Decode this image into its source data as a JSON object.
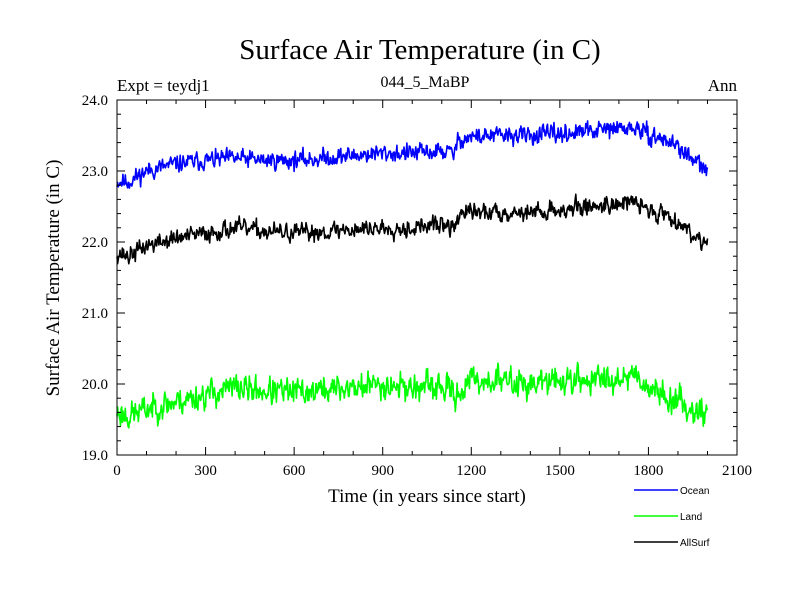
{
  "chart_data": {
    "type": "line",
    "title": "Surface Air Temperature (in C)",
    "subtitle_left": "Expt = teydj1",
    "subtitle_center": "044_5_MaBP",
    "subtitle_right": "Ann",
    "xlabel": "Time (in years since start)",
    "ylabel": "Surface Air Temperature (in C)",
    "xlim": [
      0,
      2100
    ],
    "ylim": [
      19.0,
      24.0
    ],
    "x_ticks": [
      0,
      300,
      600,
      900,
      1200,
      1500,
      1800,
      2100
    ],
    "x_tick_labels": [
      "0",
      "300",
      "600",
      "900",
      "1200",
      "1500",
      "1800",
      "2100"
    ],
    "y_ticks": [
      19,
      20,
      21,
      22,
      23,
      24
    ],
    "y_tick_labels": [
      "19.0",
      "20.0",
      "21.0",
      "22.0",
      "23.0",
      "24.0"
    ],
    "x_range": [
      0,
      2000
    ],
    "legend_position": "bottom-right, outside plot",
    "series": [
      {
        "name": "Ocean",
        "color": "#0000ff",
        "amplitude": 0.11,
        "seed": 11,
        "x": [
          0,
          40,
          100,
          200,
          300,
          400,
          500,
          600,
          700,
          800,
          900,
          1000,
          1100,
          1140,
          1160,
          1200,
          1300,
          1400,
          1500,
          1600,
          1700,
          1760,
          1800,
          1850,
          1900,
          1950,
          2000
        ],
        "y": [
          22.85,
          22.85,
          23.0,
          23.1,
          23.15,
          23.18,
          23.15,
          23.15,
          23.18,
          23.22,
          23.25,
          23.25,
          23.28,
          23.25,
          23.45,
          23.48,
          23.5,
          23.5,
          23.52,
          23.56,
          23.6,
          23.6,
          23.5,
          23.45,
          23.35,
          23.15,
          23.0
        ]
      },
      {
        "name": "Land",
        "color": "#00ff00",
        "amplitude": 0.17,
        "seed": 23,
        "x": [
          0,
          40,
          100,
          200,
          300,
          400,
          500,
          600,
          700,
          800,
          900,
          1000,
          1100,
          1150,
          1200,
          1300,
          1400,
          1500,
          1600,
          1700,
          1760,
          1800,
          1850,
          1900,
          1950,
          2000
        ],
        "y": [
          19.6,
          19.55,
          19.65,
          19.75,
          19.85,
          19.95,
          19.9,
          19.88,
          19.92,
          19.95,
          20.0,
          19.95,
          19.95,
          19.85,
          20.05,
          20.05,
          20.0,
          20.05,
          20.05,
          20.1,
          20.15,
          19.95,
          19.85,
          19.75,
          19.65,
          19.6
        ]
      },
      {
        "name": "AllSurf",
        "color": "#000000",
        "amplitude": 0.11,
        "seed": 37,
        "x": [
          0,
          40,
          100,
          200,
          300,
          400,
          500,
          600,
          700,
          800,
          900,
          1000,
          1100,
          1140,
          1160,
          1200,
          1300,
          1400,
          1500,
          1600,
          1700,
          1760,
          1800,
          1850,
          1900,
          1950,
          2000
        ],
        "y": [
          21.85,
          21.8,
          21.95,
          22.05,
          22.12,
          22.2,
          22.15,
          22.12,
          22.15,
          22.18,
          22.2,
          22.2,
          22.25,
          22.18,
          22.4,
          22.42,
          22.42,
          22.42,
          22.45,
          22.5,
          22.55,
          22.55,
          22.45,
          22.4,
          22.3,
          22.1,
          22.0
        ]
      }
    ]
  }
}
